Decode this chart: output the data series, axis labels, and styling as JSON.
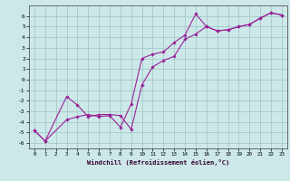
{
  "xlabel": "Windchill (Refroidissement éolien,°C)",
  "background_color": "#cce8e8",
  "grid_color": "#a0c4c4",
  "line_color": "#992299",
  "xlim": [
    -0.5,
    23.5
  ],
  "ylim": [
    -6.5,
    7.0
  ],
  "xticks": [
    0,
    1,
    2,
    3,
    4,
    5,
    6,
    7,
    8,
    9,
    10,
    11,
    12,
    13,
    14,
    15,
    16,
    17,
    18,
    19,
    20,
    21,
    22,
    23
  ],
  "yticks": [
    -6,
    -5,
    -4,
    -3,
    -2,
    -1,
    0,
    1,
    2,
    3,
    4,
    5,
    6
  ],
  "line1_x": [
    0,
    1,
    3,
    4,
    5,
    6,
    7,
    8,
    9,
    10,
    11,
    12,
    13,
    14,
    15,
    16,
    17,
    18,
    19,
    20,
    21,
    22,
    23
  ],
  "line1_y": [
    -4.8,
    -5.8,
    -3.8,
    -3.5,
    -3.3,
    -3.5,
    -3.4,
    -4.5,
    -2.3,
    2.0,
    2.4,
    2.6,
    3.5,
    4.2,
    6.2,
    5.0,
    4.6,
    4.7,
    5.0,
    5.2,
    5.8,
    6.3,
    6.1
  ],
  "line2_x": [
    0,
    1,
    3,
    4,
    5,
    6,
    7,
    8,
    9,
    10,
    11,
    12,
    13,
    14,
    15,
    16,
    17,
    18,
    19,
    20,
    21,
    22,
    23
  ],
  "line2_y": [
    -4.8,
    -5.8,
    -1.6,
    -2.4,
    -3.5,
    -3.3,
    -3.3,
    -3.4,
    -4.7,
    -0.5,
    1.2,
    1.8,
    2.2,
    3.8,
    4.3,
    5.0,
    4.6,
    4.7,
    5.0,
    5.2,
    5.8,
    6.3,
    6.1
  ]
}
